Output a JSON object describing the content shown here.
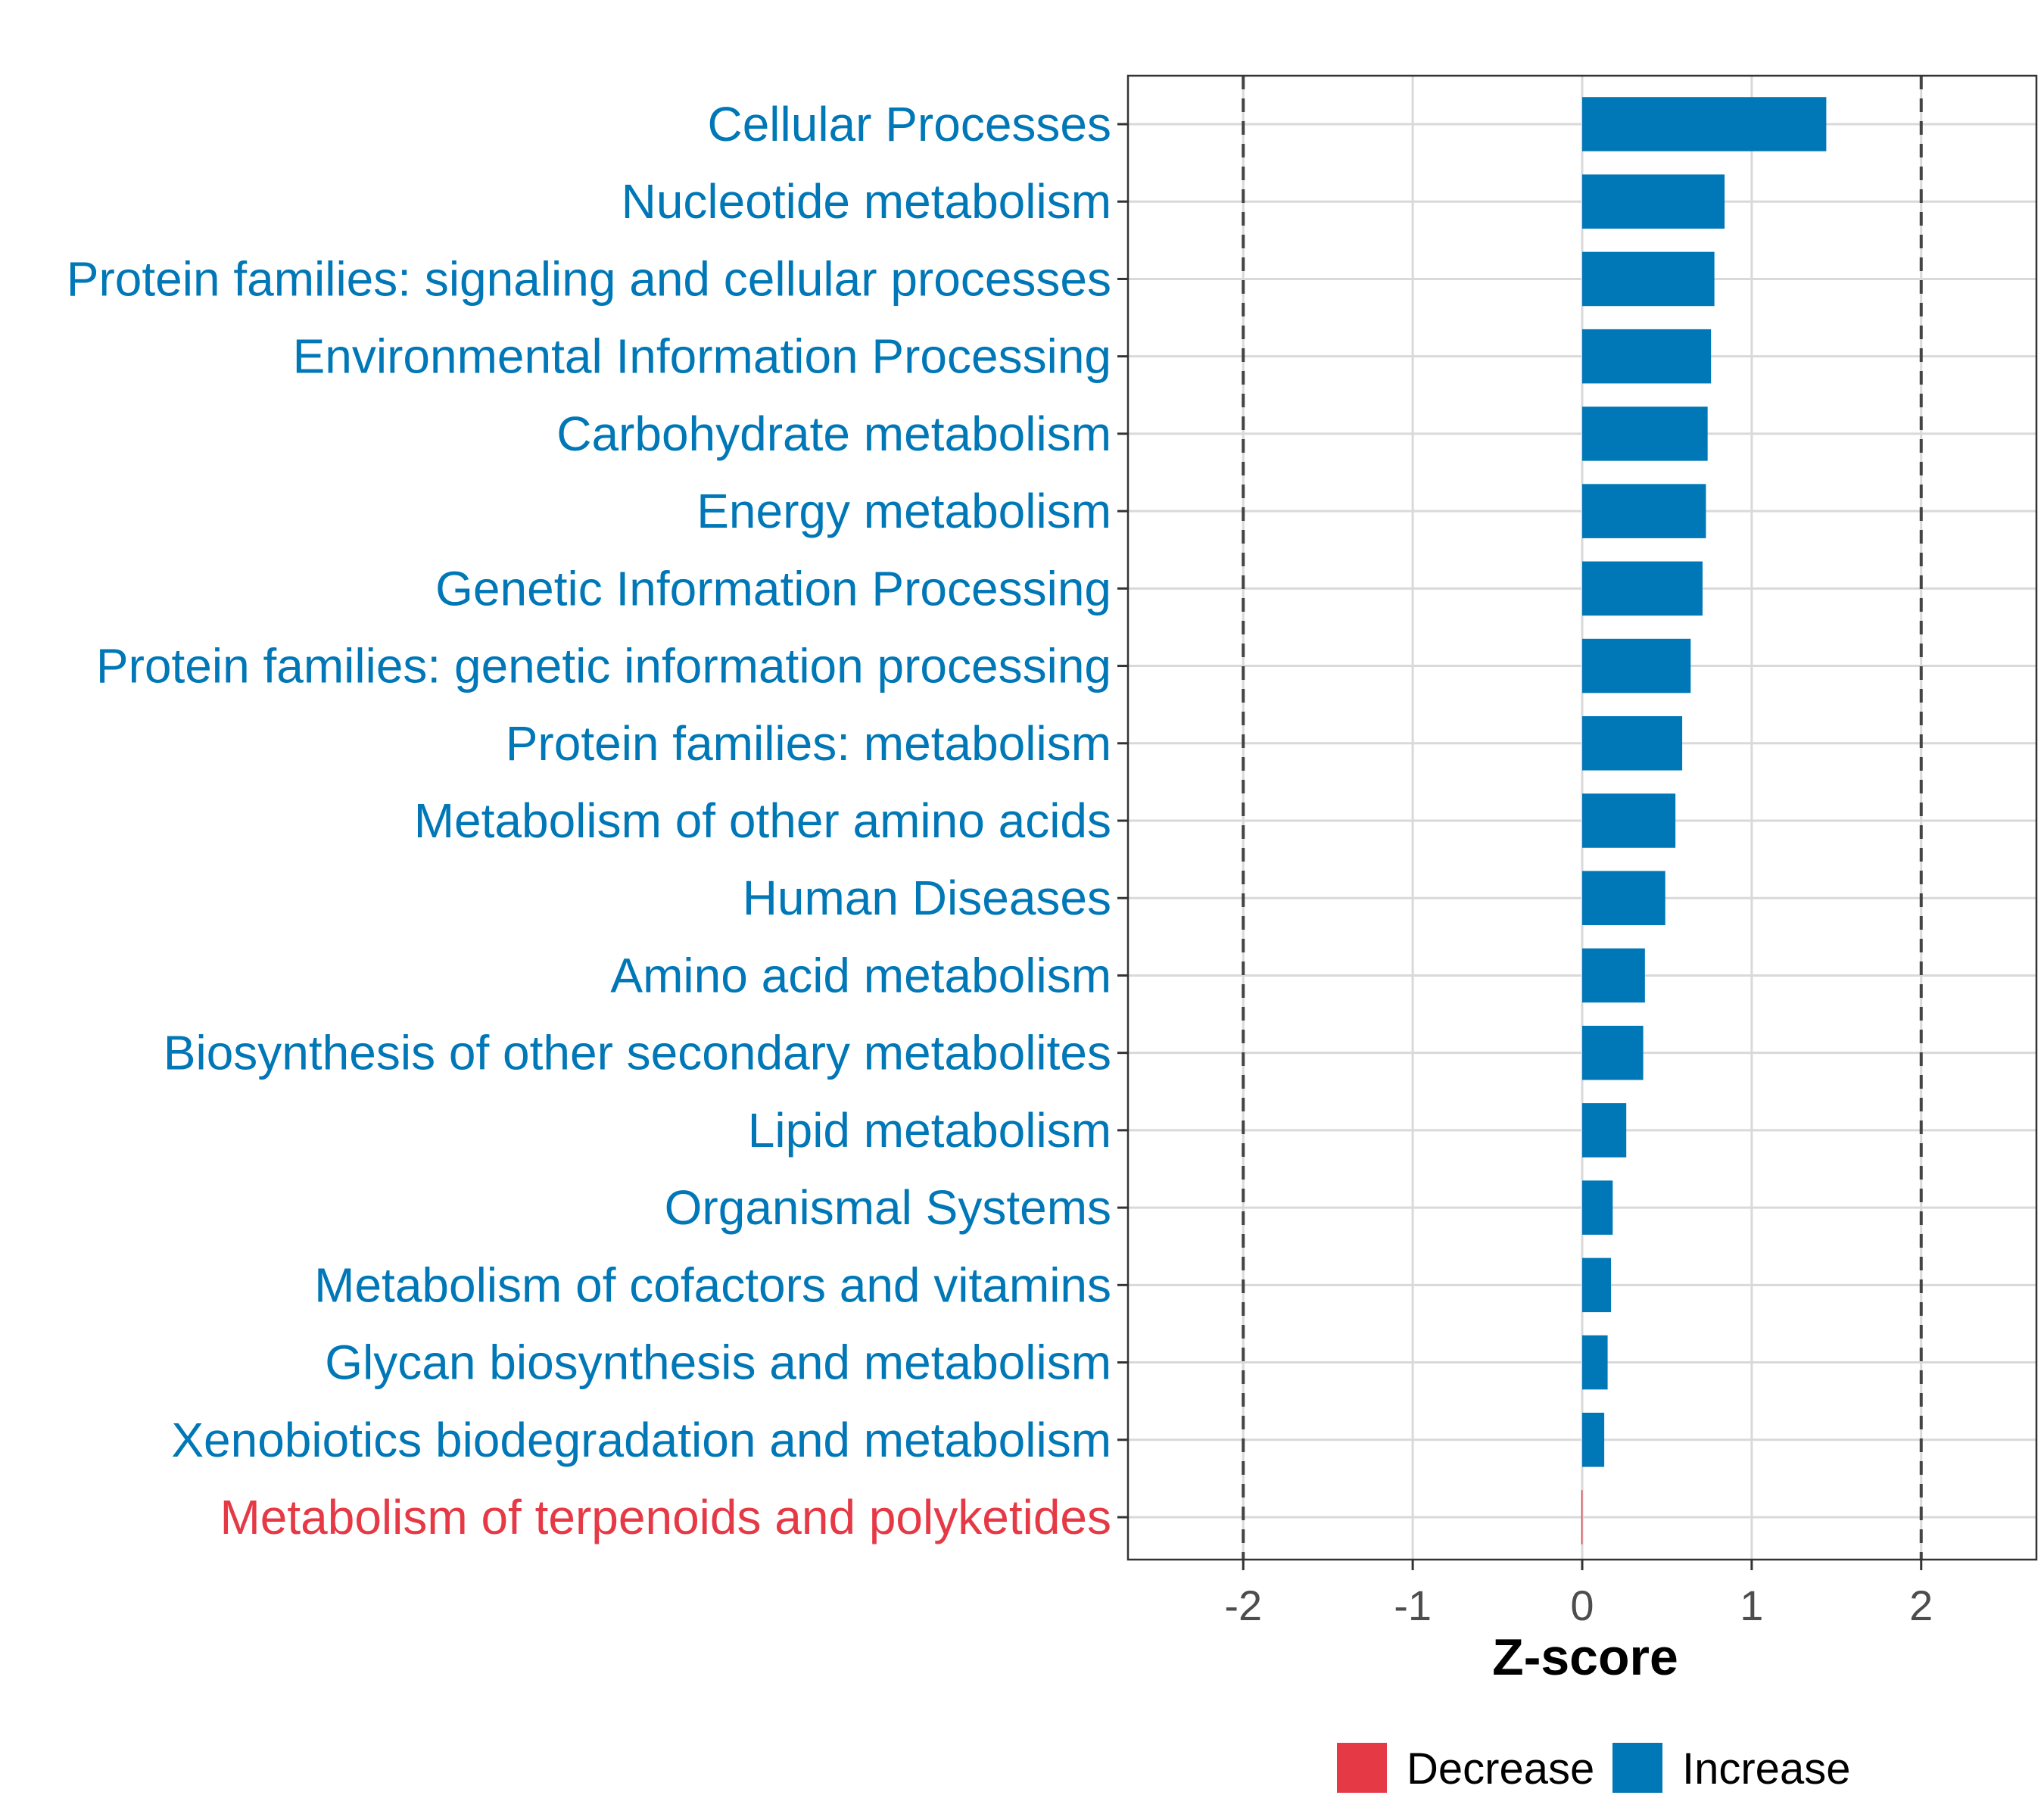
{
  "chart_data": {
    "type": "bar",
    "orientation": "horizontal",
    "title": "",
    "xlabel": "Z-score",
    "ylabel": "",
    "xlim": [
      -2.68,
      2.68
    ],
    "xticks": [
      -2,
      -1,
      0,
      1,
      2
    ],
    "xtick_labels": [
      "-2",
      "-1",
      "0",
      "1",
      "2"
    ],
    "reference_lines": [
      -2,
      2
    ],
    "grid": true,
    "legend_position": "bottom",
    "legend": [
      {
        "key": "Decrease",
        "label": "Decrease",
        "color": "#e63946"
      },
      {
        "key": "Increase",
        "label": "Increase",
        "color": "#0077b6"
      }
    ],
    "categories": [
      "Cellular Processes",
      "Nucleotide metabolism",
      "Protein families: signaling and cellular processes",
      "Environmental Information Processing",
      "Carbohydrate metabolism",
      "Energy metabolism",
      "Genetic Information Processing",
      "Protein families: genetic information processing",
      "Protein families: metabolism",
      "Metabolism of other amino acids",
      "Human Diseases",
      "Amino acid metabolism",
      "Biosynthesis of other secondary metabolites",
      "Lipid metabolism",
      "Organismal Systems",
      "Metabolism of cofactors and vitamins",
      "Glycan biosynthesis and metabolism",
      "Xenobiotics biodegradation and metabolism",
      "Metabolism of terpenoids and polyketides"
    ],
    "values": [
      1.44,
      0.84,
      0.78,
      0.76,
      0.74,
      0.73,
      0.71,
      0.64,
      0.59,
      0.55,
      0.49,
      0.37,
      0.36,
      0.26,
      0.18,
      0.17,
      0.15,
      0.13,
      -0.005
    ],
    "groups": [
      "Increase",
      "Increase",
      "Increase",
      "Increase",
      "Increase",
      "Increase",
      "Increase",
      "Increase",
      "Increase",
      "Increase",
      "Increase",
      "Increase",
      "Increase",
      "Increase",
      "Increase",
      "Increase",
      "Increase",
      "Increase",
      "Decrease"
    ]
  }
}
